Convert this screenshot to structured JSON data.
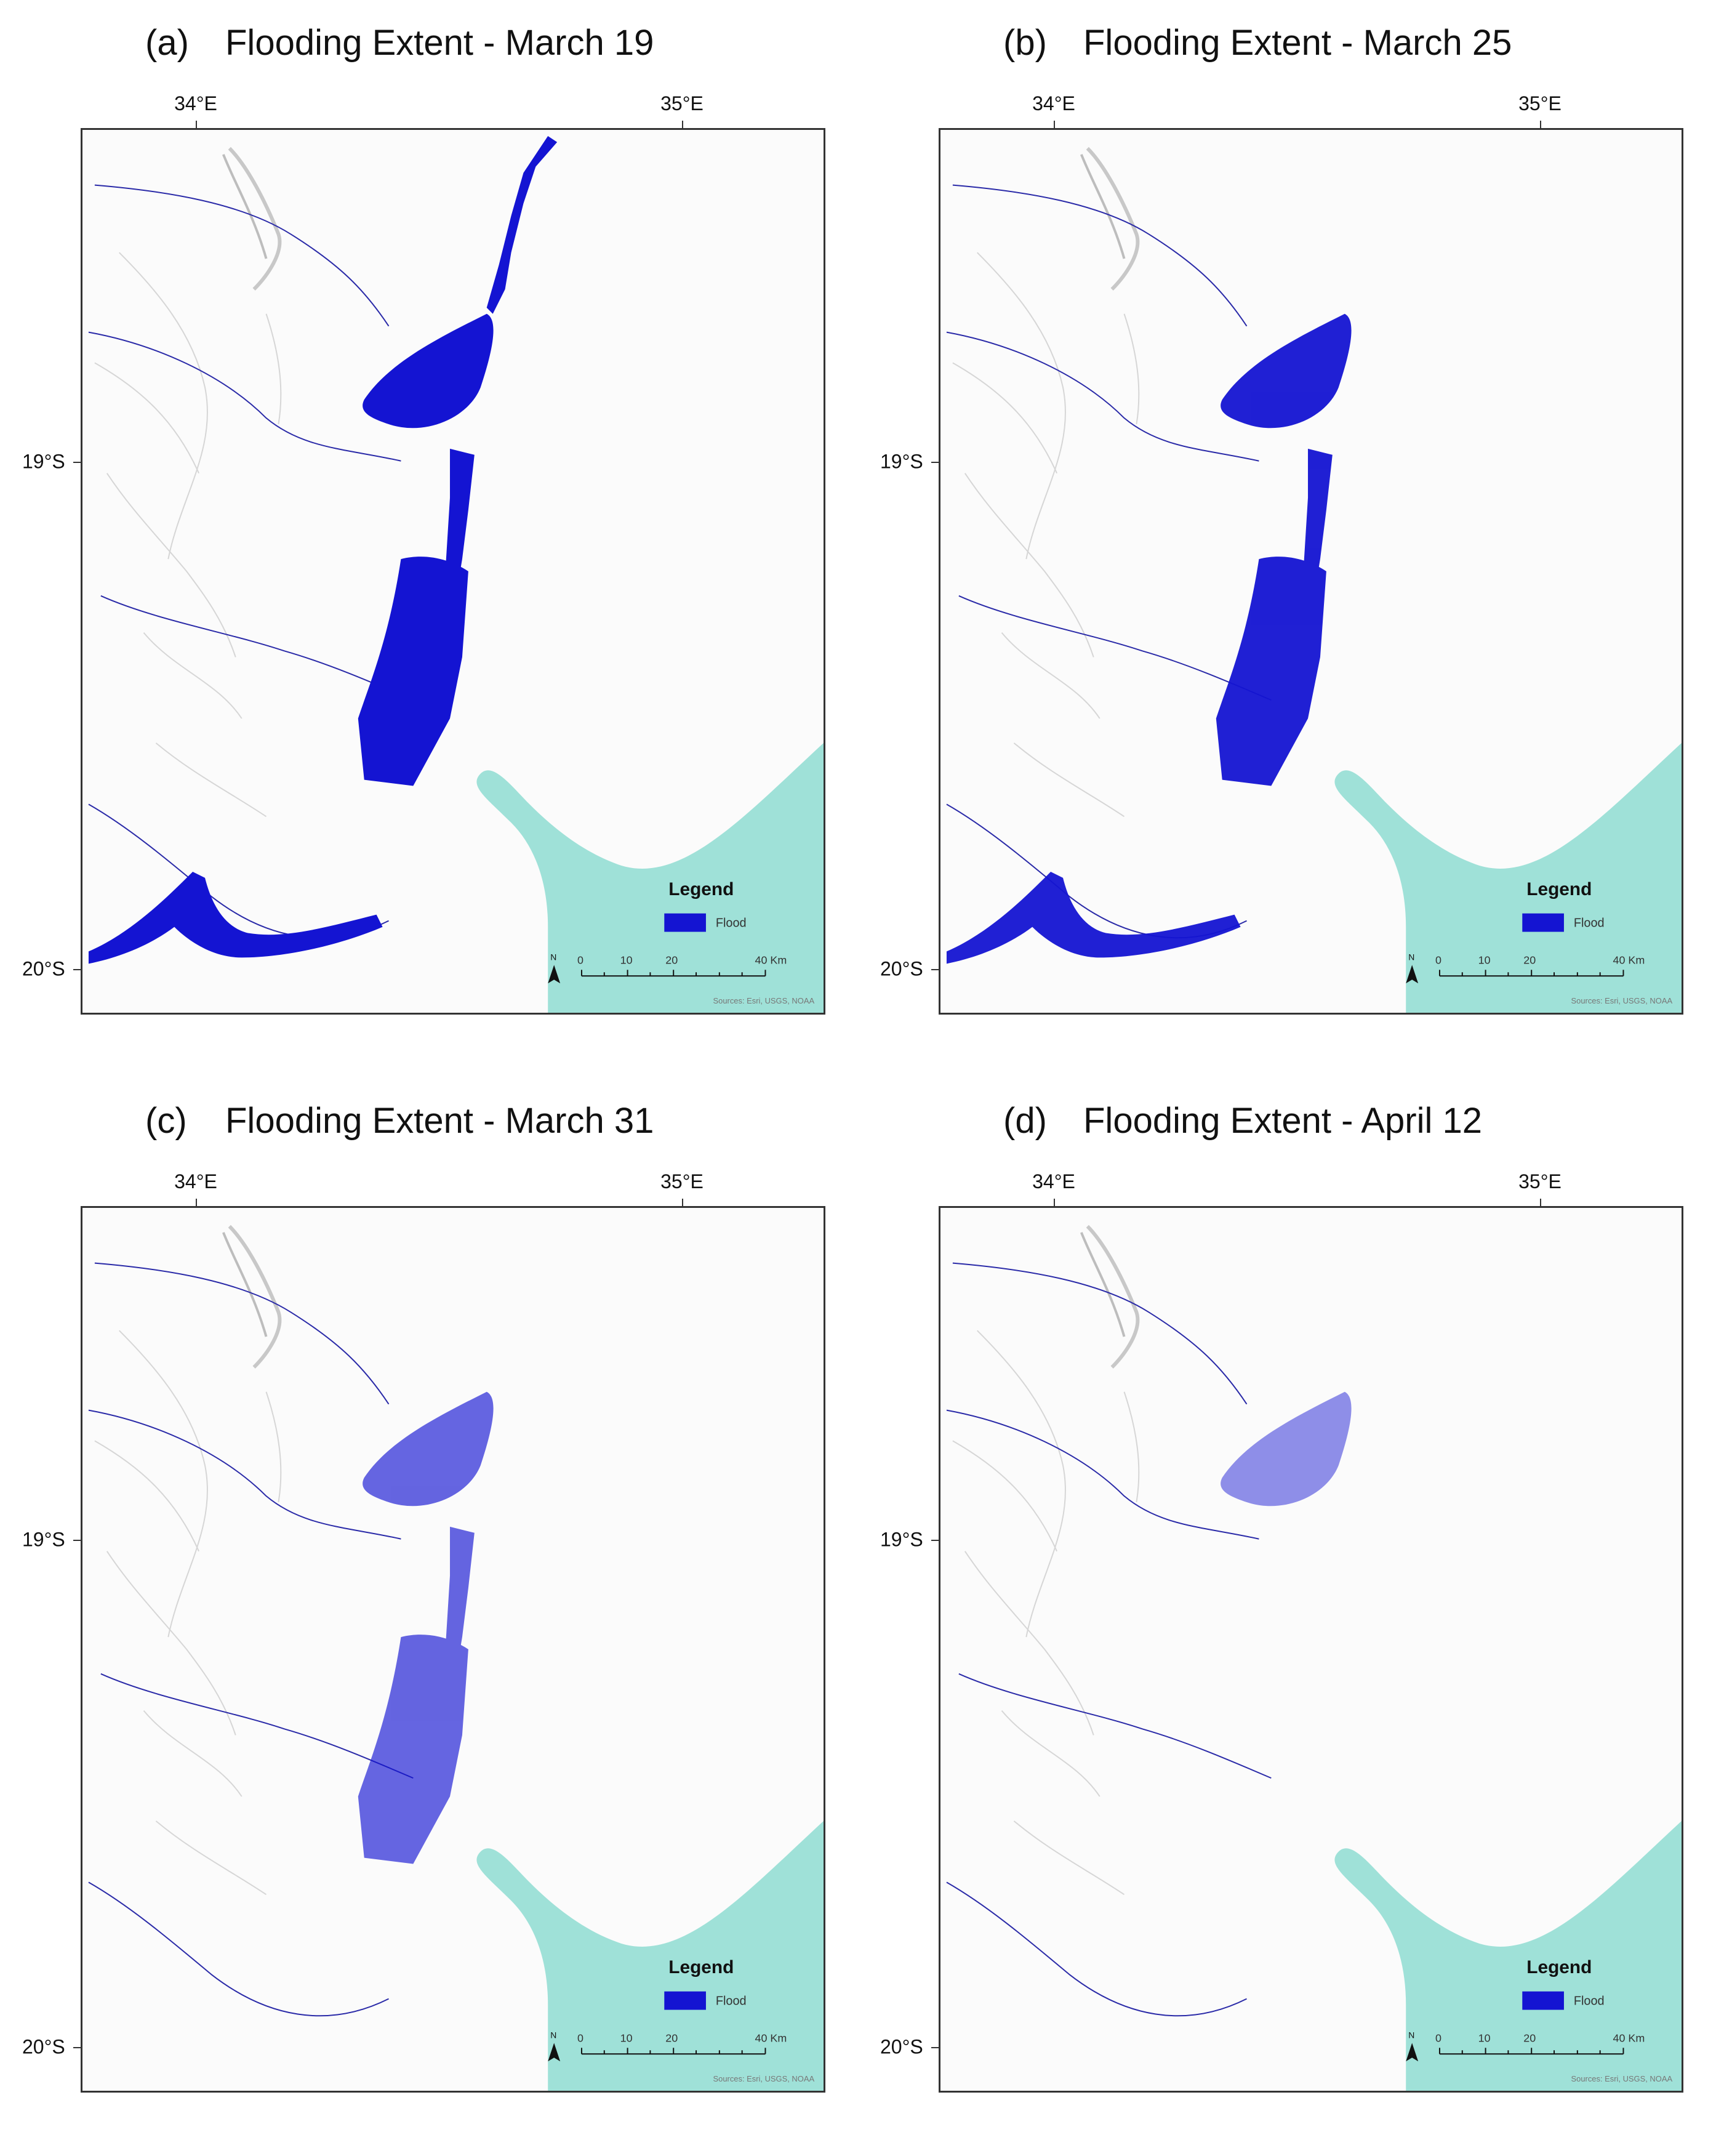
{
  "axis_labels": {
    "lon": [
      "34°E",
      "35°E"
    ],
    "lat": [
      "19°S",
      "20°S"
    ]
  },
  "legend": {
    "title": "Legend",
    "item_label": "Flood",
    "item_color": "#1414d2"
  },
  "scale_bar": {
    "labels": [
      "0",
      "10",
      "20",
      "40 Km"
    ]
  },
  "attribution": "Sources: Esri, USGS, NOAA",
  "colors": {
    "flood": "#1414d2",
    "ocean": "#9fe1d8",
    "terrain": "#d8d8d8",
    "river": "#2a2aa8"
  },
  "panels": [
    {
      "letter": "(a)",
      "title": "Flooding Extent - March 19",
      "flood_level": 1.0
    },
    {
      "letter": "(b)",
      "title": "Flooding Extent - March 25",
      "flood_level": 0.6
    },
    {
      "letter": "(c)",
      "title": "Flooding Extent - March 31",
      "flood_level": 0.3
    },
    {
      "letter": "(d)",
      "title": "Flooding Extent - April 12",
      "flood_level": 0.12
    }
  ]
}
